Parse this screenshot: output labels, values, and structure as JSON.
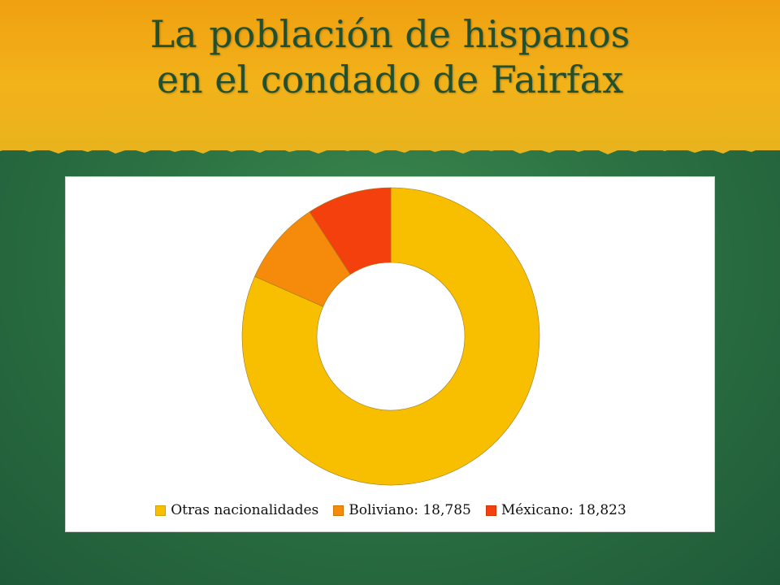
{
  "slide": {
    "title_line1": "La población de hispanos",
    "title_line2": "en el condado de Fairfax"
  },
  "colors": {
    "header_band": "#f2b21a",
    "background": "#2c7243",
    "title_text": "#20502f"
  },
  "chart_data": {
    "type": "pie",
    "donut": true,
    "title": "",
    "legend_position": "bottom",
    "categories": [
      "Otras nacionalidades",
      "Boliviano: 18,785",
      "Méxicano: 18,823"
    ],
    "values": [
      81.6,
      9.2,
      9.2
    ],
    "colors": [
      "#f8bf00",
      "#f58a0b",
      "#f4400c"
    ]
  }
}
